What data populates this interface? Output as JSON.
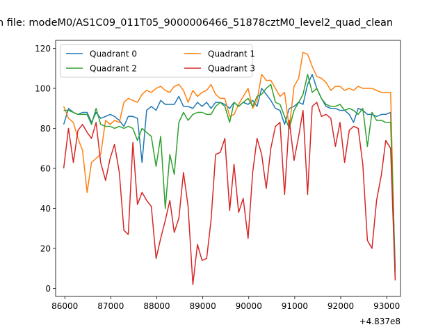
{
  "chart_data": {
    "type": "line",
    "title": "n file: modeM0/AS1C09_011T05_9000006466_51878cztM0_level2_quad_clean",
    "xlabel": "",
    "ylabel": "",
    "x_offset_label": "+4.837e8",
    "xlim": [
      85800,
      93300
    ],
    "ylim": [
      -4,
      124
    ],
    "xticks": [
      86000,
      87000,
      88000,
      89000,
      90000,
      91000,
      92000,
      93000
    ],
    "yticks": [
      0,
      20,
      40,
      60,
      80,
      100,
      120
    ],
    "grid": false,
    "legend_placement": "upper-left",
    "x": [
      85975,
      86080,
      86185,
      86285,
      86385,
      86485,
      86580,
      86680,
      86780,
      86885,
      86985,
      87080,
      87185,
      87285,
      87380,
      87480,
      87580,
      87680,
      87780,
      87880,
      87985,
      88085,
      88185,
      88285,
      88380,
      88480,
      88580,
      88680,
      88785,
      88885,
      88985,
      89085,
      89180,
      89280,
      89380,
      89480,
      89585,
      89680,
      89780,
      89880,
      89985,
      90085,
      90180,
      90280,
      90380,
      90480,
      90580,
      90680,
      90780,
      90880,
      90985,
      91085,
      91180,
      91280,
      91380,
      91480,
      91580,
      91680,
      91785,
      91885,
      91985,
      92085,
      92185,
      92280,
      92380,
      92480,
      92580,
      92680,
      92780,
      92885,
      92980,
      93085,
      93185
    ],
    "series": [
      {
        "name": "Quadrant 0",
        "color": "#1f77b4",
        "values": [
          82,
          90,
          88,
          87,
          88,
          88,
          83,
          88,
          85,
          86,
          87,
          86,
          84,
          81,
          86,
          86,
          85,
          63,
          89,
          91,
          89,
          94,
          92,
          92,
          92,
          96,
          91,
          91,
          90,
          93,
          91,
          93,
          90,
          93,
          93,
          92,
          90,
          93,
          91,
          93,
          92,
          94,
          91,
          100,
          97,
          94,
          90,
          89,
          82,
          90,
          91,
          93,
          92,
          102,
          107,
          100,
          95,
          91,
          90,
          90,
          89,
          89,
          87,
          83,
          90,
          89,
          87,
          87,
          86,
          87,
          87,
          88,
          10
        ]
      },
      {
        "name": "Quadrant 1",
        "color": "#ff7f0e",
        "values": [
          91,
          85,
          83,
          75,
          69,
          48,
          63,
          65,
          67,
          84,
          82,
          84,
          83,
          93,
          95,
          94,
          93,
          97,
          99,
          98,
          100,
          101,
          99,
          98,
          101,
          102,
          99,
          93,
          99,
          96,
          98,
          99,
          102,
          97,
          95,
          95,
          86,
          87,
          92,
          96,
          100,
          90,
          94,
          107,
          104,
          104,
          100,
          96,
          98,
          80,
          101,
          105,
          118,
          117,
          111,
          106,
          105,
          103,
          99,
          101,
          101,
          99,
          100,
          99,
          101,
          100,
          100,
          100,
          99,
          98,
          98,
          98,
          5
        ]
      },
      {
        "name": "Quadrant 2",
        "color": "#2ca02c",
        "values": [
          89,
          89,
          88,
          87,
          87,
          87,
          82,
          90,
          82,
          81,
          81,
          80,
          81,
          80,
          81,
          80,
          74,
          80,
          78,
          76,
          61,
          76,
          40,
          67,
          57,
          83,
          88,
          84,
          87,
          88,
          88,
          87,
          87,
          91,
          93,
          91,
          83,
          93,
          91,
          93,
          95,
          91,
          96,
          97,
          100,
          102,
          93,
          92,
          86,
          80,
          89,
          93,
          97,
          107,
          98,
          100,
          95,
          92,
          91,
          91,
          92,
          89,
          90,
          89,
          87,
          90,
          71,
          88,
          84,
          84,
          83,
          83,
          8
        ]
      },
      {
        "name": "Quadrant 3",
        "color": "#d62728",
        "values": [
          60,
          80,
          63,
          79,
          82,
          78,
          75,
          83,
          63,
          54,
          65,
          72,
          58,
          29,
          27,
          73,
          42,
          48,
          44,
          41,
          15,
          25,
          34,
          44,
          28,
          35,
          58,
          41,
          2,
          22,
          14,
          15,
          34,
          67,
          68,
          75,
          39,
          62,
          38,
          45,
          25,
          58,
          75,
          67,
          50,
          70,
          81,
          83,
          47,
          84,
          64,
          76,
          89,
          47,
          91,
          93,
          86,
          87,
          85,
          71,
          83,
          63,
          79,
          81,
          80,
          62,
          24,
          20,
          44,
          57,
          74,
          70,
          4
        ]
      }
    ]
  }
}
